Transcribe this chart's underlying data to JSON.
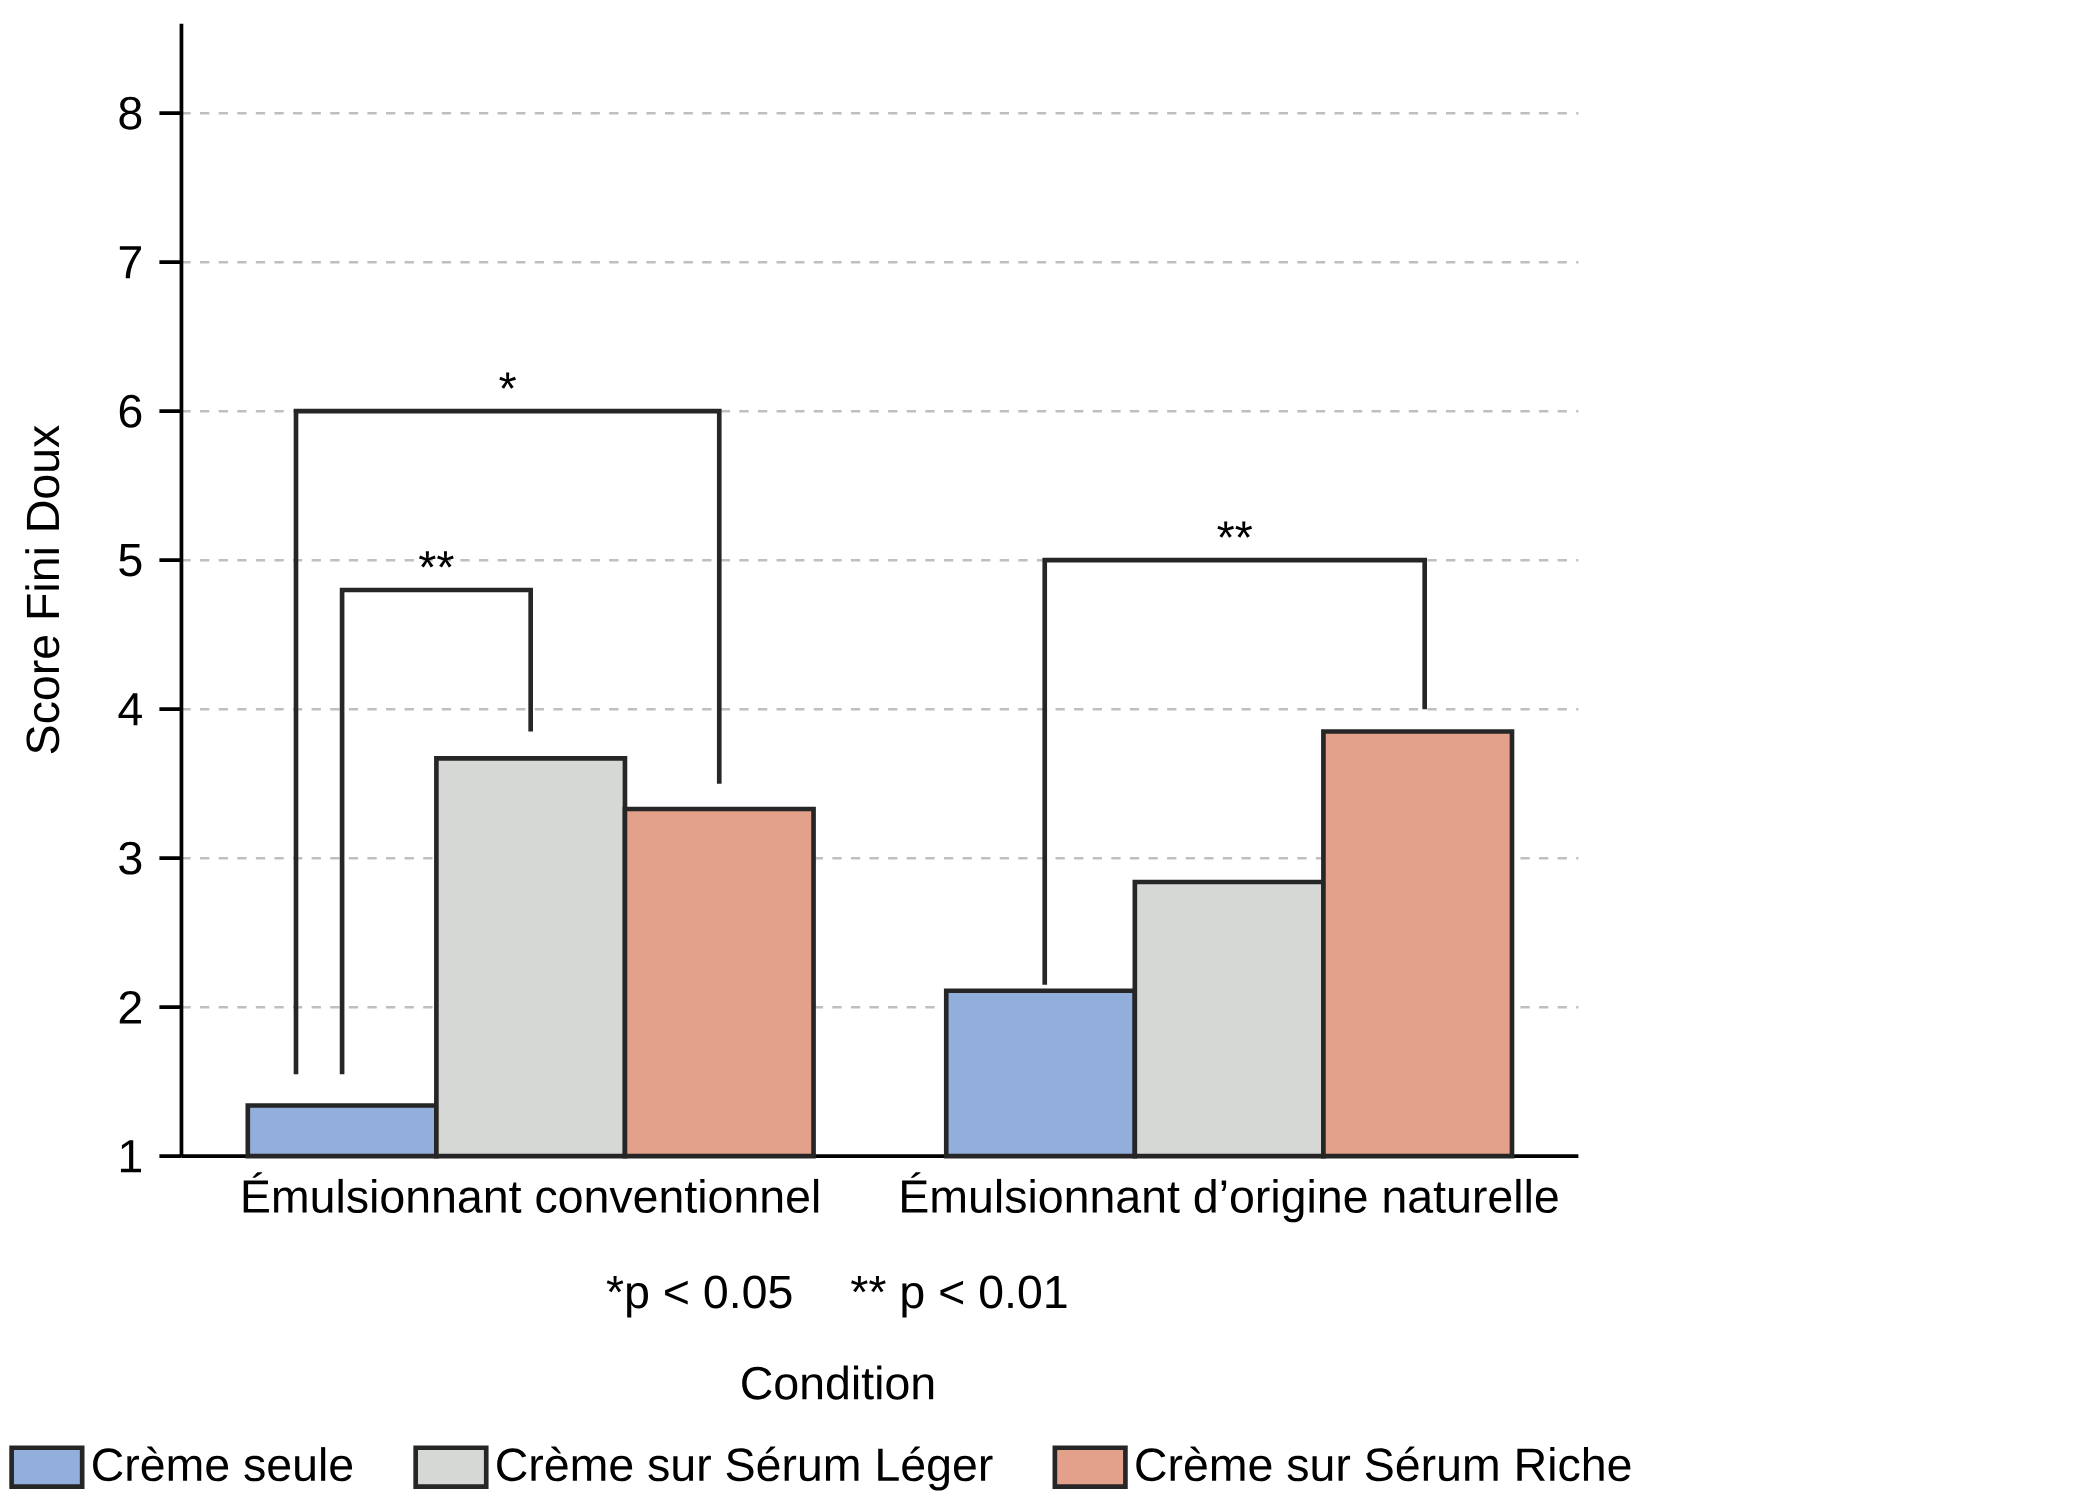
{
  "chart_data": {
    "type": "bar",
    "xlabel": "Condition",
    "ylabel": "Score Fini Doux",
    "categories": [
      "Émulsionnant conventionnel",
      "Émulsionnant d’origine naturelle"
    ],
    "series": [
      {
        "name": "Crème seule",
        "color": "#92aedb",
        "values": [
          1.34,
          2.11
        ]
      },
      {
        "name": "Crème sur Sérum Léger",
        "color": "#d6d8d5",
        "values": [
          3.67,
          2.84
        ]
      },
      {
        "name": "Crème sur Sérum Riche",
        "color": "#e3a08a",
        "values": [
          3.33,
          3.85
        ]
      }
    ],
    "ylim": [
      1,
      8.6
    ],
    "yticks": [
      1,
      2,
      3,
      4,
      5,
      6,
      7,
      8
    ],
    "grid": "y",
    "legend": "bottom",
    "annotations": [
      "*",
      "**",
      "**",
      "*p < 0.05",
      "** p < 0.01"
    ]
  }
}
